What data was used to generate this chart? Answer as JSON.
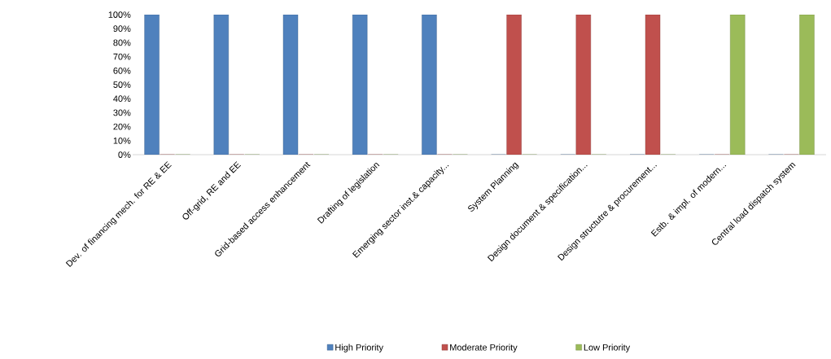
{
  "chart_data": {
    "type": "bar",
    "categories": [
      "Dev. of financing mech. for RE & EE",
      "Off-grid, RE and EE",
      "Grid-based access enhancement",
      "Drafting of legislation",
      "Emerging sector inst.& capacity...",
      "System Planning",
      "Design document & specification...",
      "Design structutre & procurement...",
      "Estb. & impl. of modern...",
      "Central load dispatch system"
    ],
    "series": [
      {
        "name": "High Priority",
        "color": "#4f81bd",
        "values": [
          100,
          100,
          100,
          100,
          100,
          0,
          0,
          0,
          0,
          0
        ]
      },
      {
        "name": "Moderate Priority",
        "color": "#c0504d",
        "values": [
          0,
          0,
          0,
          0,
          0,
          100,
          100,
          100,
          0,
          0
        ]
      },
      {
        "name": "Low Priority",
        "color": "#9bbb59",
        "values": [
          0,
          0,
          0,
          0,
          0,
          0,
          0,
          0,
          100,
          100
        ]
      }
    ],
    "ylim": [
      0,
      100
    ],
    "yticks": [
      {
        "value": 0,
        "label": "0%"
      },
      {
        "value": 10,
        "label": "10%"
      },
      {
        "value": 20,
        "label": "20%"
      },
      {
        "value": 30,
        "label": "30%"
      },
      {
        "value": 40,
        "label": "40%"
      },
      {
        "value": 50,
        "label": "50%"
      },
      {
        "value": 60,
        "label": "60%"
      },
      {
        "value": 70,
        "label": "70%"
      },
      {
        "value": 80,
        "label": "80%"
      },
      {
        "value": 90,
        "label": "90%"
      },
      {
        "value": 100,
        "label": "100%"
      }
    ],
    "legend": "bottom",
    "grid": false
  }
}
